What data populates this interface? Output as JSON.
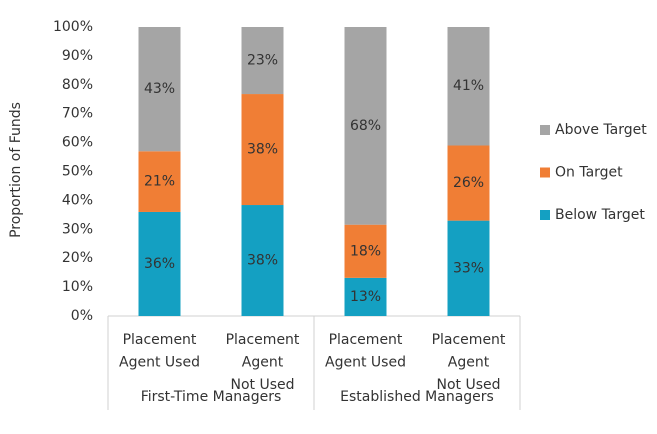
{
  "chart_data": {
    "type": "stacked_bar",
    "y_label": "Proportion of Funds",
    "categories": [
      [
        "Placement",
        "Agent Used"
      ],
      [
        "Placement",
        "Agent",
        "Not Used"
      ],
      [
        "Placement",
        "Agent Used"
      ],
      [
        "Placement",
        "Agent",
        "Not Used"
      ]
    ],
    "groups": [
      {
        "name": "First-Time Managers",
        "size": 2
      },
      {
        "name": "Established Managers",
        "size": 2
      }
    ],
    "series": [
      {
        "name": "Below Target",
        "color": "#14a0c2",
        "values": [
          36,
          38.4,
          13.2,
          33
        ],
        "value_labels": [
          "36%",
          "38%",
          "13%",
          "33%"
        ]
      },
      {
        "name": "On Target",
        "color": "#f07e35",
        "values": [
          21,
          38.4,
          18.4,
          26
        ],
        "value_labels": [
          "21%",
          "38%",
          "18%",
          "26%"
        ]
      },
      {
        "name": "Above Target",
        "color": "#a5a5a5",
        "values": [
          43,
          23.2,
          68.4,
          41
        ],
        "value_labels": [
          "43%",
          "23%",
          "68%",
          "41%"
        ]
      }
    ],
    "ylim": [
      0,
      100
    ],
    "yticks": [
      {
        "value": 0,
        "label": "0%"
      },
      {
        "value": 10,
        "label": "10%"
      },
      {
        "value": 20,
        "label": "20%"
      },
      {
        "value": 30,
        "label": "30%"
      },
      {
        "value": 40,
        "label": "40%"
      },
      {
        "value": 50,
        "label": "50%"
      },
      {
        "value": 60,
        "label": "60%"
      },
      {
        "value": 70,
        "label": "70%"
      },
      {
        "value": 80,
        "label": "80%"
      },
      {
        "value": 90,
        "label": "90%"
      },
      {
        "value": 100,
        "label": "100%"
      }
    ],
    "legend": "right",
    "legend_reversed": true,
    "grid": false
  }
}
